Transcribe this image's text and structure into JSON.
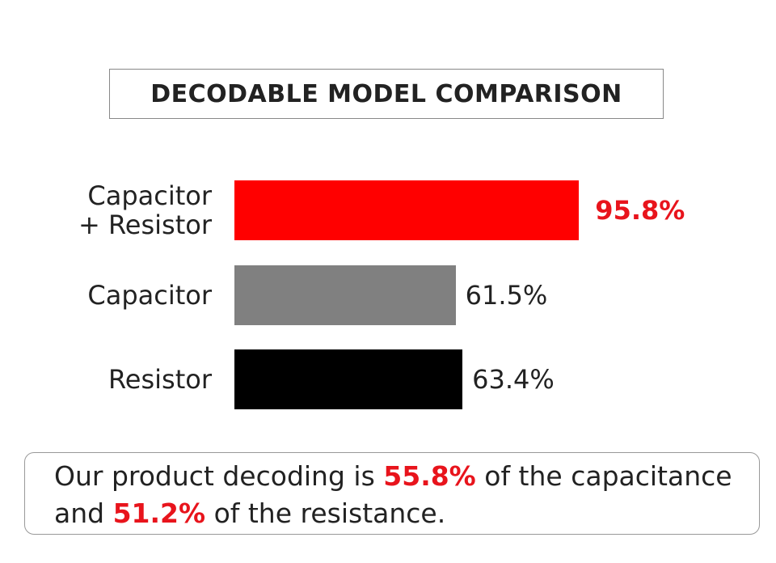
{
  "chart_data": {
    "type": "bar",
    "orientation": "horizontal",
    "title": "DECODABLE MODEL COMPARISON",
    "categories": [
      "Capacitor + Resistor",
      "Capacitor",
      "Resistor"
    ],
    "values": [
      95.8,
      61.5,
      63.4
    ],
    "value_labels": [
      "95.8%",
      "61.5%",
      "63.4%"
    ],
    "colors": [
      "#ff0000",
      "#808080",
      "#000000"
    ]
  },
  "note": {
    "lines": [
      [
        "Our product decoding is ",
        "55.8%",
        " of the capacitance"
      ],
      [
        "and ",
        "51.2%",
        " of the resistance."
      ]
    ]
  }
}
